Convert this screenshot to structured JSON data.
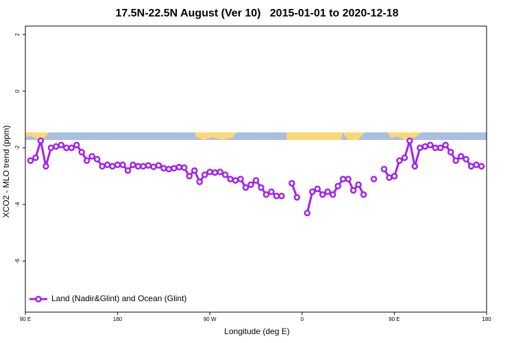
{
  "chart_data": {
    "type": "line",
    "title": "17.5N-22.5N August (Ver 10)   2015-01-01 to 2020-12-18",
    "xlabel": "Longitude (deg E)",
    "ylabel": "XCO2 - MLO trend (ppm)",
    "x": [
      95,
      100,
      105,
      110,
      115,
      120,
      125,
      130,
      135,
      140,
      145,
      150,
      155,
      160,
      165,
      170,
      175,
      180,
      185,
      190,
      195,
      200,
      205,
      210,
      215,
      220,
      225,
      230,
      235,
      240,
      245,
      250,
      255,
      260,
      265,
      270,
      275,
      280,
      285,
      290,
      295,
      300,
      305,
      310,
      315,
      320,
      325,
      330,
      335,
      340,
      345,
      350,
      355,
      360,
      365,
      370,
      375,
      380,
      385,
      390,
      395,
      400,
      405,
      410,
      415,
      420,
      425,
      430,
      435,
      440,
      445,
      450,
      455,
      460,
      465,
      470,
      475,
      480,
      485,
      490,
      495,
      500,
      505,
      510,
      515,
      520,
      525,
      530,
      535
    ],
    "series": [
      {
        "name": "Land (Nadir&Glint) and Ocean (Glint)",
        "color": "#a020f0",
        "values": [
          -2.45,
          -2.35,
          -1.75,
          -2.65,
          -2.0,
          -1.95,
          -1.9,
          -2.0,
          -2.0,
          -1.9,
          -2.15,
          -2.45,
          -2.3,
          -2.4,
          -2.65,
          -2.6,
          -2.65,
          -2.6,
          -2.6,
          -2.8,
          -2.6,
          -2.65,
          -2.65,
          -2.62,
          -2.67,
          -2.62,
          -2.72,
          -2.75,
          -2.72,
          -2.68,
          -2.7,
          -3.0,
          -2.8,
          -3.2,
          -2.95,
          -2.85,
          -2.87,
          -2.85,
          -2.95,
          -3.1,
          -3.15,
          -3.1,
          -3.4,
          -3.3,
          -3.15,
          -3.4,
          -3.65,
          -3.55,
          -3.7,
          -3.7,
          null,
          -3.25,
          -3.75,
          null,
          -4.3,
          -3.55,
          -3.45,
          -3.65,
          -3.55,
          -3.65,
          -3.35,
          -3.1,
          -3.1,
          -3.5,
          -3.3,
          -3.65,
          null,
          -3.1,
          null,
          -2.75,
          -3.05,
          -3.0,
          -2.45,
          -2.35,
          -1.75,
          -2.65,
          -2.0,
          -1.95,
          -1.9,
          -2.0,
          -2.0,
          -1.9,
          -2.15,
          -2.45,
          -2.3,
          -2.4,
          -2.65,
          -2.6,
          -2.65
        ]
      }
    ],
    "xlim": [
      90,
      540
    ],
    "xticks": [
      {
        "value": 90,
        "label": "90 E"
      },
      180,
      {
        "value": 270,
        "label": "90 W"
      },
      {
        "value": 360,
        "label": "0"
      },
      {
        "value": 450,
        "label": "90 E"
      },
      {
        "value": 540,
        "label": "180"
      }
    ],
    "ylim": [
      -7.8,
      2.3
    ],
    "yticks": [
      2,
      0,
      -2,
      -4,
      -6
    ],
    "legend": "bottom-left"
  }
}
